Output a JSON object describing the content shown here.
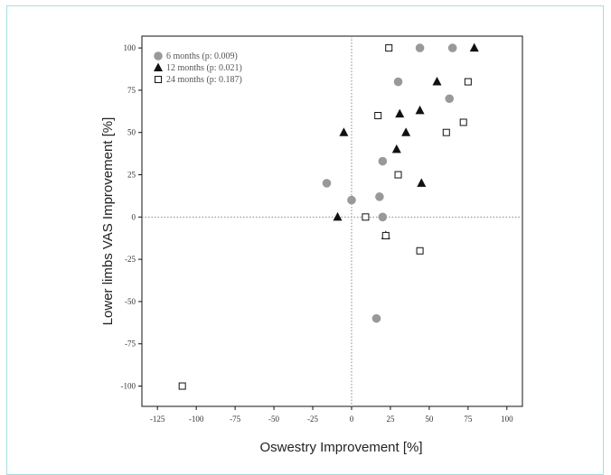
{
  "chart_data": {
    "type": "scatter",
    "xlabel": "Oswestry Improvement [%]",
    "ylabel": "Lower limbs VAS Improvement [%]",
    "xlim": [
      -135,
      110
    ],
    "ylim": [
      -112,
      107
    ],
    "xticks": [
      -125,
      -100,
      -75,
      -50,
      -25,
      0,
      25,
      50,
      75,
      100
    ],
    "yticks": [
      -100,
      -75,
      -50,
      -25,
      0,
      25,
      50,
      75,
      100
    ],
    "xtick_labels": [
      "-125",
      "-100",
      "-75",
      "-50",
      "-25",
      "0",
      "25",
      "50",
      "75",
      "100"
    ],
    "ytick_labels": [
      "-100",
      "-75",
      "-50",
      "-25",
      "0",
      "25",
      "50",
      "75",
      "100"
    ],
    "reference_lines": {
      "x": 0,
      "y": 0,
      "style": "dotted"
    },
    "legend_position": "top-left",
    "series": [
      {
        "name": "6 months (p: 0.009)",
        "marker": "circle",
        "color": "#999999",
        "points": [
          [
            44,
            100
          ],
          [
            65,
            100
          ],
          [
            30,
            80
          ],
          [
            63,
            70
          ],
          [
            20,
            33
          ],
          [
            -16,
            20
          ],
          [
            0,
            10
          ],
          [
            18,
            12
          ],
          [
            20,
            0
          ],
          [
            16,
            -60
          ]
        ]
      },
      {
        "name": "12 months (p: 0.021)",
        "marker": "triangle",
        "color": "#111111",
        "points": [
          [
            79,
            100
          ],
          [
            55,
            80
          ],
          [
            44,
            63
          ],
          [
            31,
            61
          ],
          [
            35,
            50
          ],
          [
            -5,
            50
          ],
          [
            29,
            40
          ],
          [
            45,
            20
          ],
          [
            -9,
            0
          ],
          [
            22,
            -11
          ]
        ]
      },
      {
        "name": "24 months (p: 0.187)",
        "marker": "square-open",
        "color": "#111111",
        "points": [
          [
            24,
            100
          ],
          [
            75,
            80
          ],
          [
            17,
            60
          ],
          [
            72,
            56
          ],
          [
            61,
            50
          ],
          [
            30,
            25
          ],
          [
            9,
            0
          ],
          [
            22,
            -11
          ],
          [
            44,
            -20
          ],
          [
            -109,
            -100
          ]
        ]
      }
    ]
  }
}
